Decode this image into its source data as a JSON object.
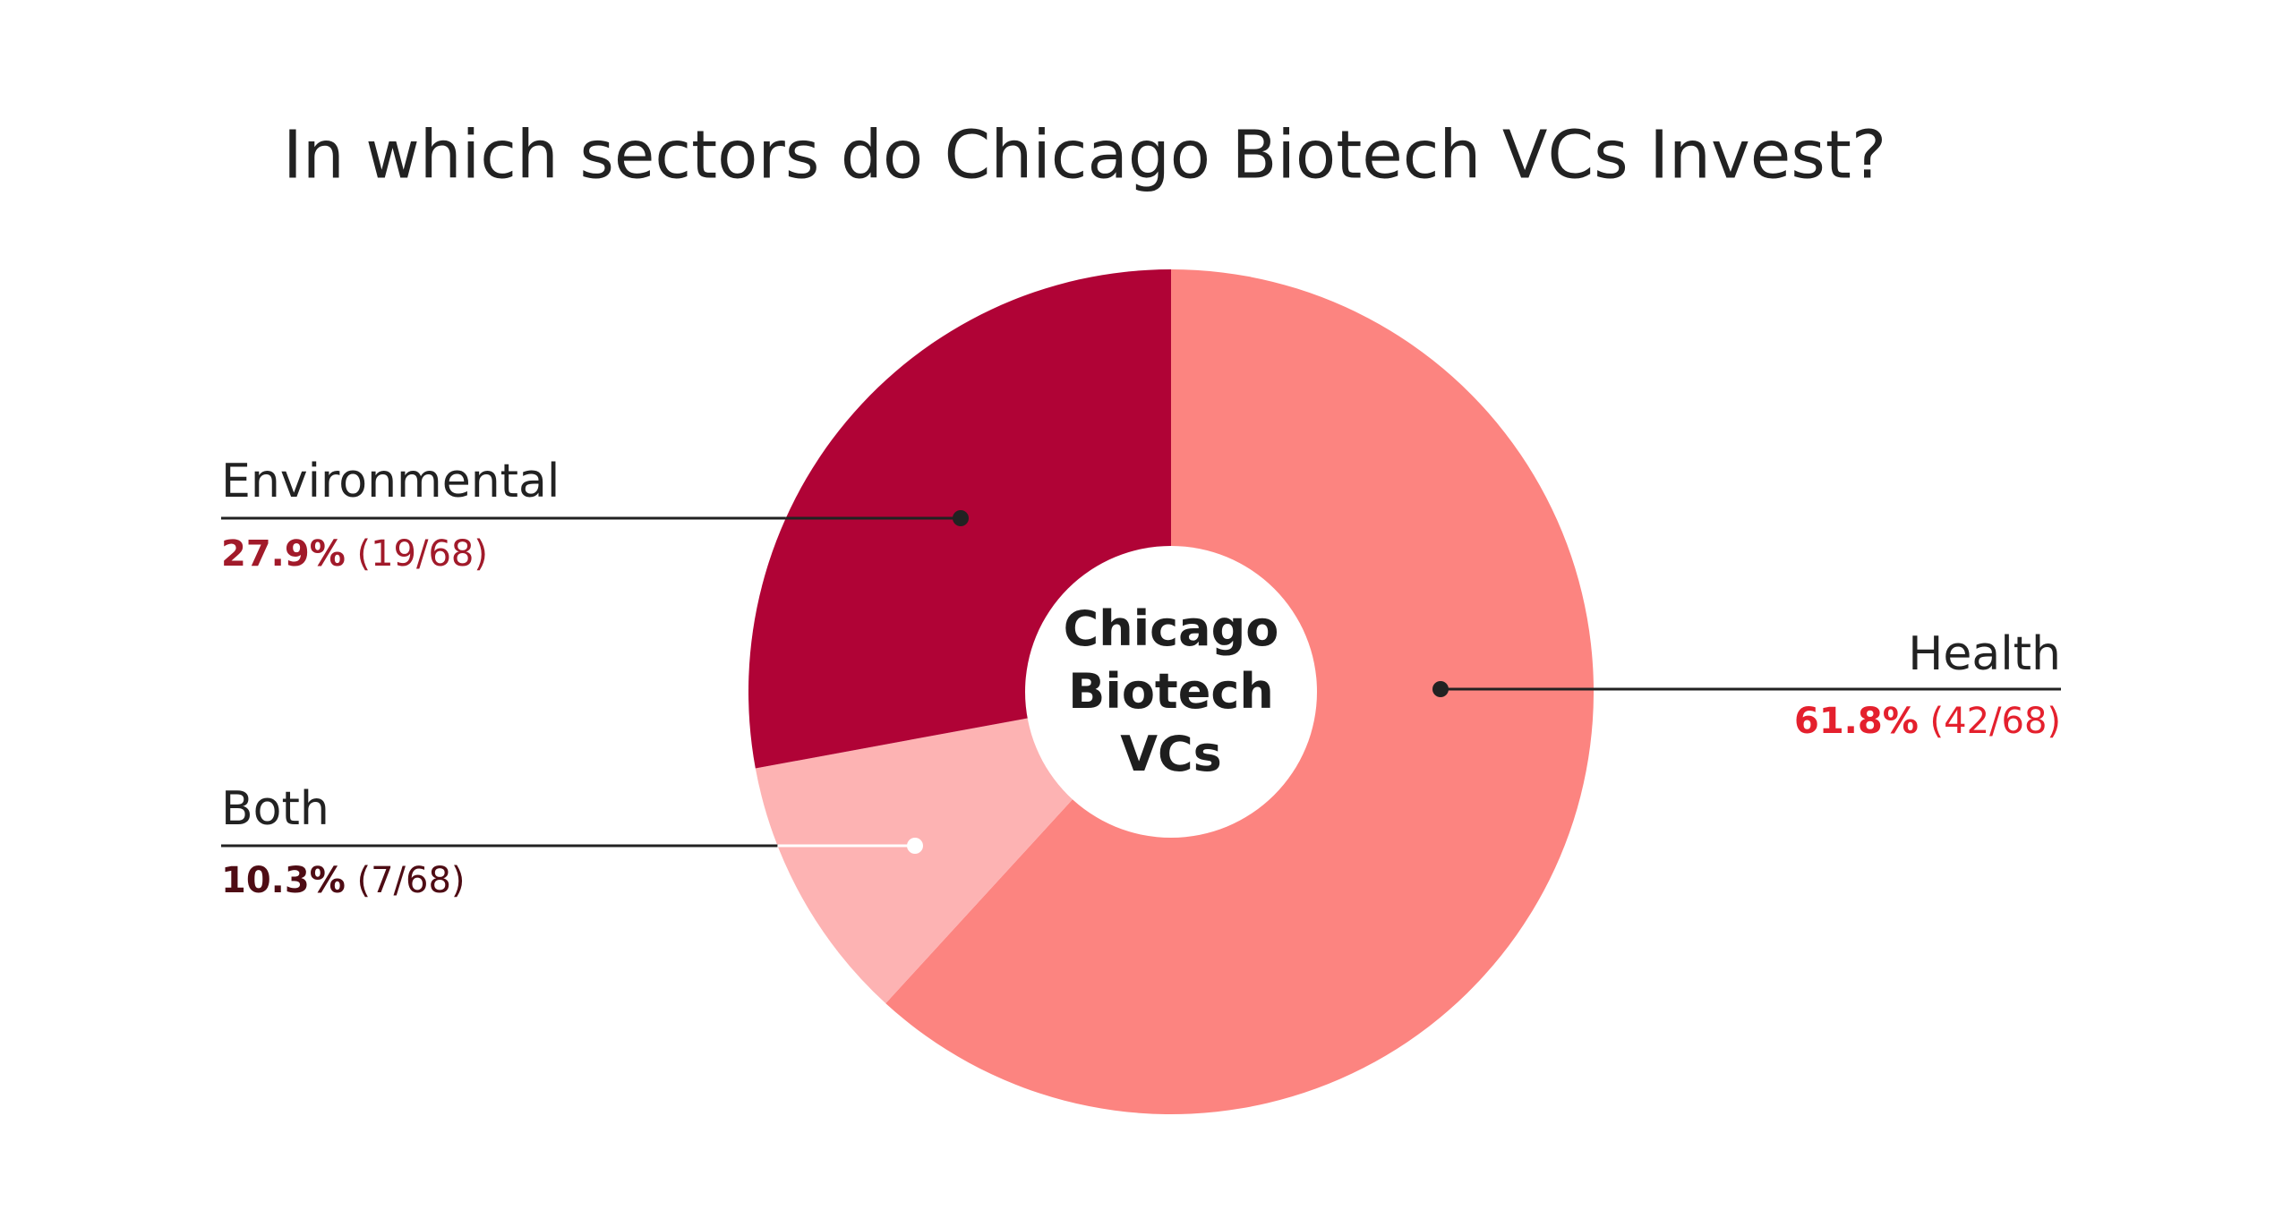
{
  "chart_data": {
    "type": "pie",
    "title": "In which sectors do Chicago Biotech VCs Invest?",
    "center_label": "Chicago Biotech VCs",
    "categories": [
      "Health",
      "Both",
      "Environmental"
    ],
    "values": [
      61.8,
      10.3,
      27.9
    ],
    "value_labels": [
      "61.8%",
      "10.3%",
      "27.9%"
    ],
    "counts": [
      "(42/68)",
      "(7/68)",
      "(19/68)"
    ],
    "colors": [
      "#fc8480",
      "#fdb3b3",
      "#b00336"
    ],
    "label_colors": [
      "#e4202d",
      "#4e0c14",
      "#a11a2a"
    ]
  }
}
